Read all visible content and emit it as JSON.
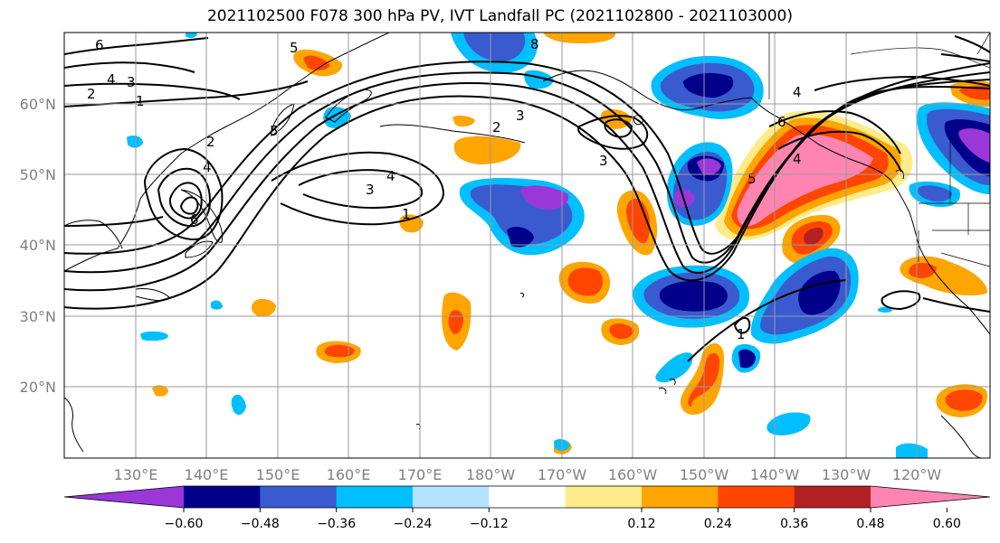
{
  "title": "2021102500 F078 300 hPa PV, IVT Landfall PC (2021102800 - 2021103000)",
  "lat_labels": [
    "60°N",
    "50°N",
    "40°N",
    "30°N",
    "20°N"
  ],
  "lon_labels": [
    "130°E",
    "140°E",
    "150°E",
    "160°E",
    "170°E",
    "180°W",
    "170°W",
    "160°W",
    "150°W",
    "140°W",
    "130°W",
    "120°W"
  ],
  "colorbar": {
    "colors": [
      "#9a37d8",
      "#00008b",
      "#3a5ad0",
      "#00bfff",
      "#b3e3ff",
      "#ffffff",
      "#ffeb8a",
      "#ffa500",
      "#ff4500",
      "#b22222",
      "#ff85b0"
    ],
    "tick_labels": [
      "−0.60",
      "−0.48",
      "−0.36",
      "−0.24",
      "−0.12",
      "0.12",
      "0.24",
      "0.36",
      "0.48",
      "0.60"
    ]
  },
  "contour_labels": [
    "6",
    "4",
    "3",
    "2",
    "1",
    "5",
    "2",
    "4",
    "6",
    "5",
    "3",
    "2",
    "1",
    "4",
    "3",
    "8",
    "3",
    "4",
    "6",
    "4",
    "5",
    "1"
  ],
  "shading_colors": {
    "pos_light": "#ffeb8a",
    "pos_mid": "#ffa500",
    "pos_strong": "#ff4500",
    "pos_dark": "#b22222",
    "pos_max": "#ff85b0",
    "neg_light": "#b3e3ff",
    "neg_mid": "#00bfff",
    "neg_strong": "#3a5ad0",
    "neg_dark": "#00008b",
    "neg_max": "#9a37d8"
  }
}
